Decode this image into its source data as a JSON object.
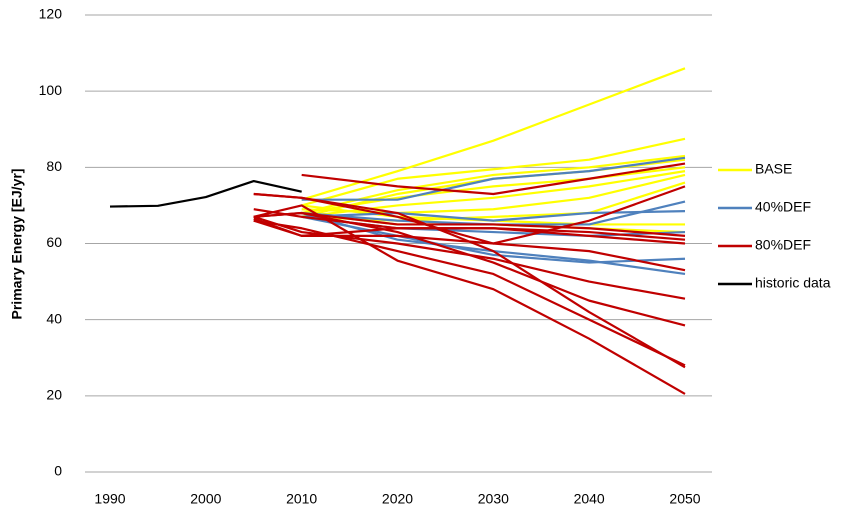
{
  "chart_data": {
    "type": "line",
    "y_label": "Primary Energy [EJ/yr]",
    "xlim": [
      1990,
      2050
    ],
    "xticks": [
      1990,
      2000,
      2010,
      2020,
      2030,
      2040,
      2050
    ],
    "ylim": [
      0,
      120
    ],
    "yticks": [
      0,
      20,
      40,
      60,
      80,
      100,
      120
    ],
    "grid": true,
    "legend": "right",
    "series": [
      {
        "name": "BASE",
        "color": "#ffff00",
        "x": [
          2010,
          2020,
          2030,
          2040,
          2050
        ],
        "lines": [
          [
            71.5,
            79,
            87,
            96.5,
            106
          ],
          [
            70,
            77,
            79.5,
            82,
            87.5
          ],
          [
            68,
            74,
            78,
            80,
            83
          ],
          [
            68,
            72,
            75,
            77,
            80
          ],
          [
            67,
            70,
            72,
            75,
            79
          ],
          [
            69,
            68,
            69,
            72,
            78
          ],
          [
            67,
            66,
            67,
            68,
            76
          ],
          [
            70,
            67,
            66,
            65,
            65
          ],
          [
            68,
            65,
            65,
            64,
            63
          ],
          [
            67,
            73,
            77,
            79,
            82
          ]
        ]
      },
      {
        "name": "40%DEF",
        "color": "#4f81bd",
        "x": [
          2010,
          2020,
          2030,
          2040,
          2050
        ],
        "lines": [
          [
            71.5,
            71.5,
            77,
            79,
            82.5
          ],
          [
            67,
            68,
            66,
            68,
            68.5
          ],
          [
            68,
            66,
            65,
            65,
            71
          ],
          [
            67,
            64,
            63,
            62,
            63
          ],
          [
            68,
            61,
            58,
            55.5,
            52
          ],
          [
            67,
            62,
            57,
            55,
            56
          ]
        ]
      },
      {
        "name": "80%DEF",
        "color": "#c00000",
        "x": [
          2005,
          2010,
          2020,
          2030,
          2040,
          2050
        ],
        "lines": [
          [
            null,
            78,
            75,
            73,
            77,
            81
          ],
          [
            73,
            72,
            67,
            60,
            66,
            75
          ],
          [
            67,
            68,
            65,
            65,
            64,
            62
          ],
          [
            69,
            67,
            64,
            64,
            63,
            61
          ],
          [
            66.5,
            62,
            62,
            60,
            58,
            53
          ],
          [
            67,
            63,
            60,
            56,
            50,
            45.5
          ],
          [
            67,
            70,
            55.5,
            48,
            35,
            20.5
          ],
          [
            66,
            64,
            58,
            52,
            40,
            28
          ],
          [
            67,
            68,
            63,
            55,
            45,
            38.5
          ],
          [
            73,
            72,
            68,
            58,
            42,
            27.5
          ],
          [
            66,
            62,
            64,
            64,
            62,
            60
          ]
        ]
      },
      {
        "name": "historic data",
        "color": "#000000",
        "x": [
          1990,
          1995,
          2000,
          2005,
          2010
        ],
        "lines": [
          [
            69.7,
            69.9,
            72.2,
            76.4,
            73.6
          ]
        ]
      }
    ]
  }
}
